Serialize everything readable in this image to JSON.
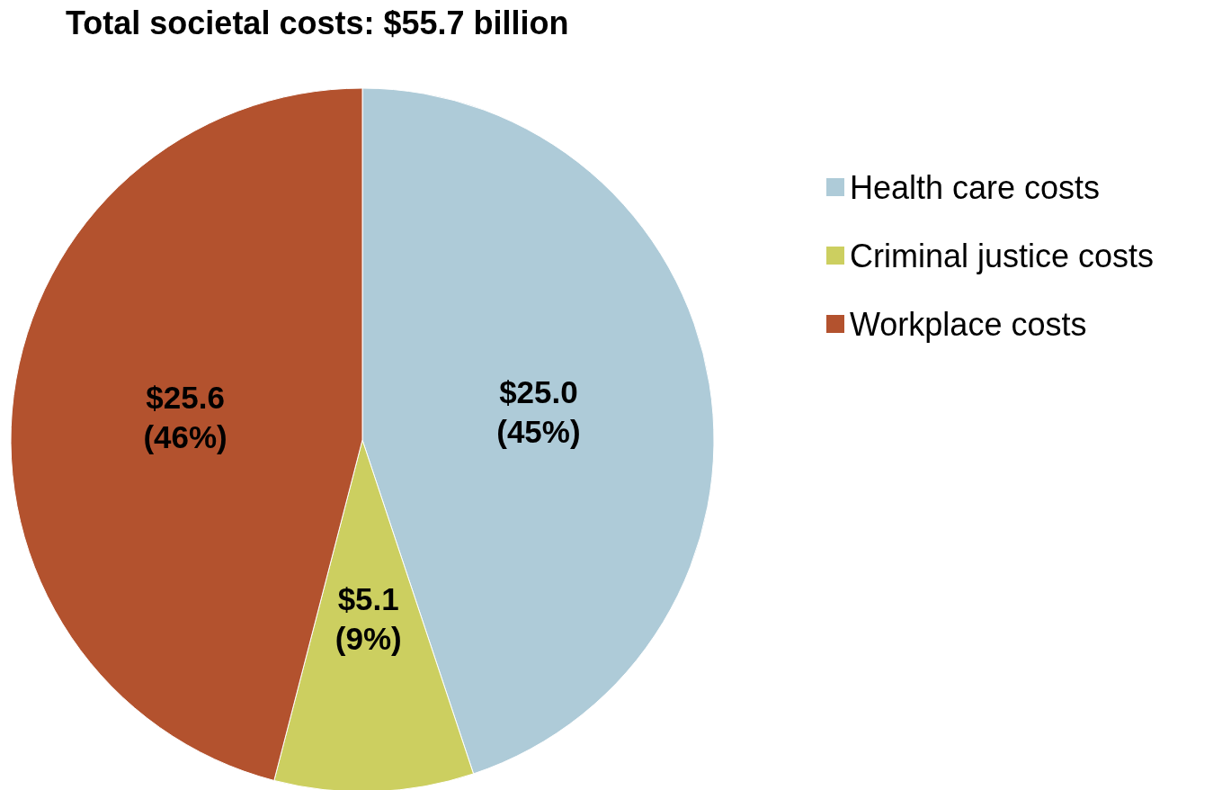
{
  "chart_data": {
    "type": "pie",
    "title": "Total societal costs: $55.7 billion",
    "categories": [
      "Health care costs",
      "Criminal justice costs",
      "Workplace costs"
    ],
    "values": [
      25.0,
      5.1,
      25.6
    ],
    "colors": [
      "#aecbd8",
      "#cccf60",
      "#b3522e"
    ],
    "value_labels": [
      "$25.0\n(45%)",
      "$5.1\n(9%)",
      "$25.6\n(46%)"
    ],
    "legend": "right"
  }
}
